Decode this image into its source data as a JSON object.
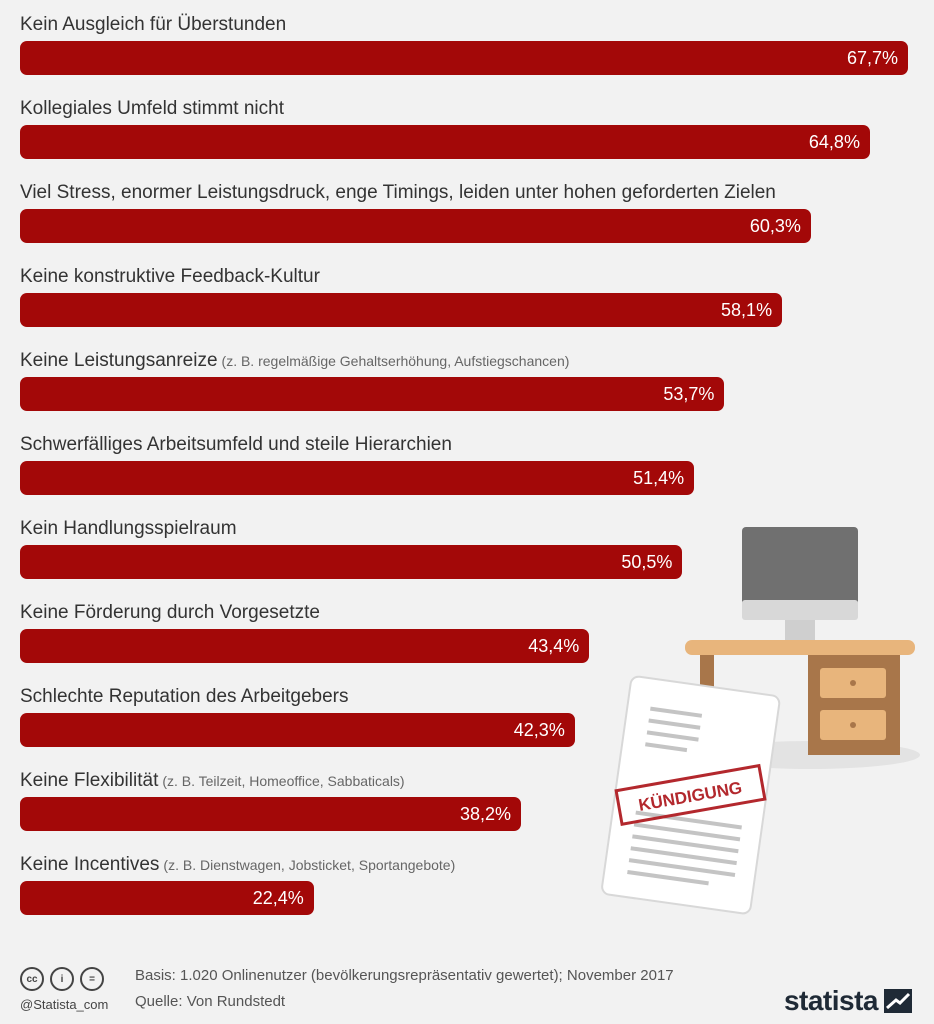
{
  "chart_data": {
    "type": "bar",
    "orientation": "horizontal",
    "categories": [
      "Kein Ausgleich für Überstunden",
      "Kollegiales Umfeld stimmt nicht",
      "Viel Stress, enormer Leistungsdruck, enge Timings, leiden unter hohen geforderten Zielen",
      "Keine konstruktive Feedback-Kultur",
      "Keine Leistungsanreize",
      "Schwerfälliges Arbeitsumfeld und steile Hierarchien",
      "Kein Handlungsspielraum",
      "Keine Förderung durch Vorgesetzte",
      "Schlechte Reputation des Arbeitgebers",
      "Keine Flexibilität",
      "Keine Incentives"
    ],
    "subtitles": [
      "",
      "",
      "",
      "",
      "(z. B. regelmäßige Gehaltserhöhung, Aufstiegschancen)",
      "",
      "",
      "",
      "",
      "(z. B. Teilzeit, Homeoffice, Sabbaticals)",
      "(z. B. Dienstwagen, Jobsticket, Sportangebote)"
    ],
    "values": [
      67.7,
      64.8,
      60.3,
      58.1,
      53.7,
      51.4,
      50.5,
      43.4,
      42.3,
      38.2,
      22.4
    ],
    "value_labels": [
      "67,7%",
      "64,8%",
      "60,3%",
      "58,1%",
      "53,7%",
      "51,4%",
      "50,5%",
      "43,4%",
      "42,3%",
      "38,2%",
      "22,4%"
    ],
    "xlim": [
      0,
      67.7
    ],
    "unit": "%",
    "bar_color": "#a30808",
    "grid": false,
    "legend": "none"
  },
  "illustration": {
    "stamp_text": "KÜNDIGUNG",
    "stamp_color": "#b3282d"
  },
  "footer": {
    "handle": "@Statista_com",
    "basis": "Basis: 1.020 Onlinenutzer (bevölkerungsrepräsentativ gewertet); November 2017",
    "source": "Quelle: Von Rundstedt",
    "logo": "statista",
    "cc_icons": [
      "cc-icon",
      "by-icon",
      "nd-icon"
    ]
  },
  "colors": {
    "background": "#f2f2f2",
    "bar": "#a30808",
    "text": "#333333"
  }
}
